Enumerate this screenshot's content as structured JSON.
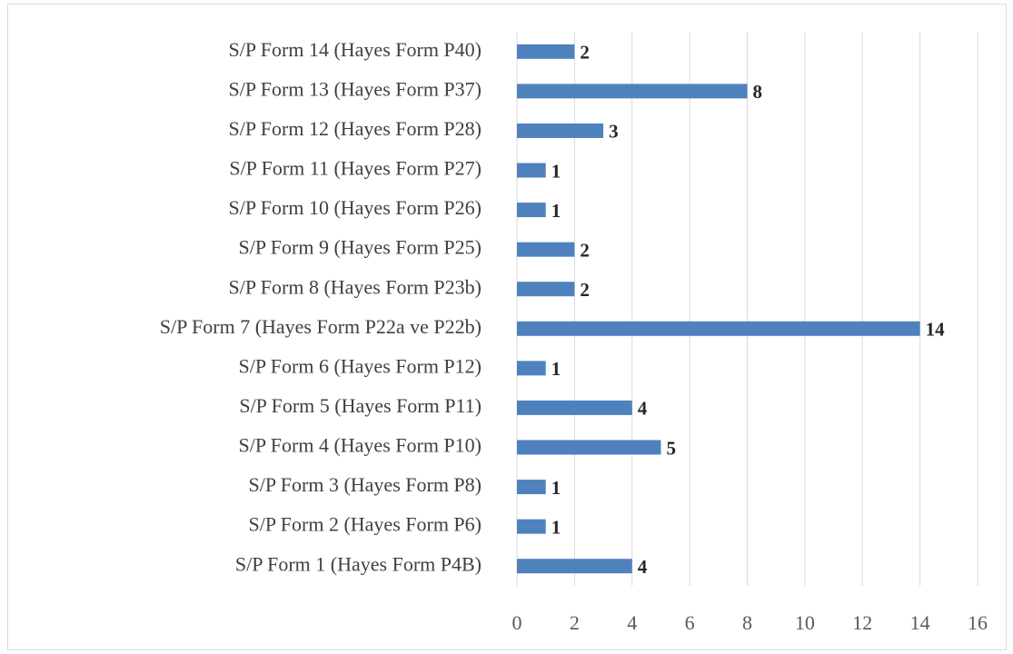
{
  "chart_data": {
    "type": "barh",
    "categories": [
      "S/P Form 1 (Hayes Form P4B)",
      "S/P Form 2 (Hayes Form P6)",
      "S/P Form 3 (Hayes Form P8)",
      "S/P Form 4 (Hayes Form P10)",
      "S/P Form 5 (Hayes Form P11)",
      "S/P Form 6 (Hayes Form P12)",
      "S/P Form 7 (Hayes Form P22a ve P22b)",
      "S/P Form 8 (Hayes Form P23b)",
      "S/P Form 9 (Hayes Form P25)",
      "S/P Form 10 (Hayes Form P26)",
      "S/P Form 11 (Hayes Form P27)",
      "S/P Form 12 (Hayes Form P28)",
      "S/P Form 13 (Hayes Form P37)",
      "S/P Form 14 (Hayes Form P40)"
    ],
    "values": [
      4,
      1,
      1,
      5,
      4,
      1,
      14,
      2,
      2,
      1,
      1,
      3,
      8,
      2
    ],
    "color": "#4f81bd",
    "xlim": [
      0,
      16
    ],
    "xticks": [
      0,
      2,
      4,
      6,
      8,
      10,
      12,
      14,
      16
    ],
    "grid": true
  }
}
